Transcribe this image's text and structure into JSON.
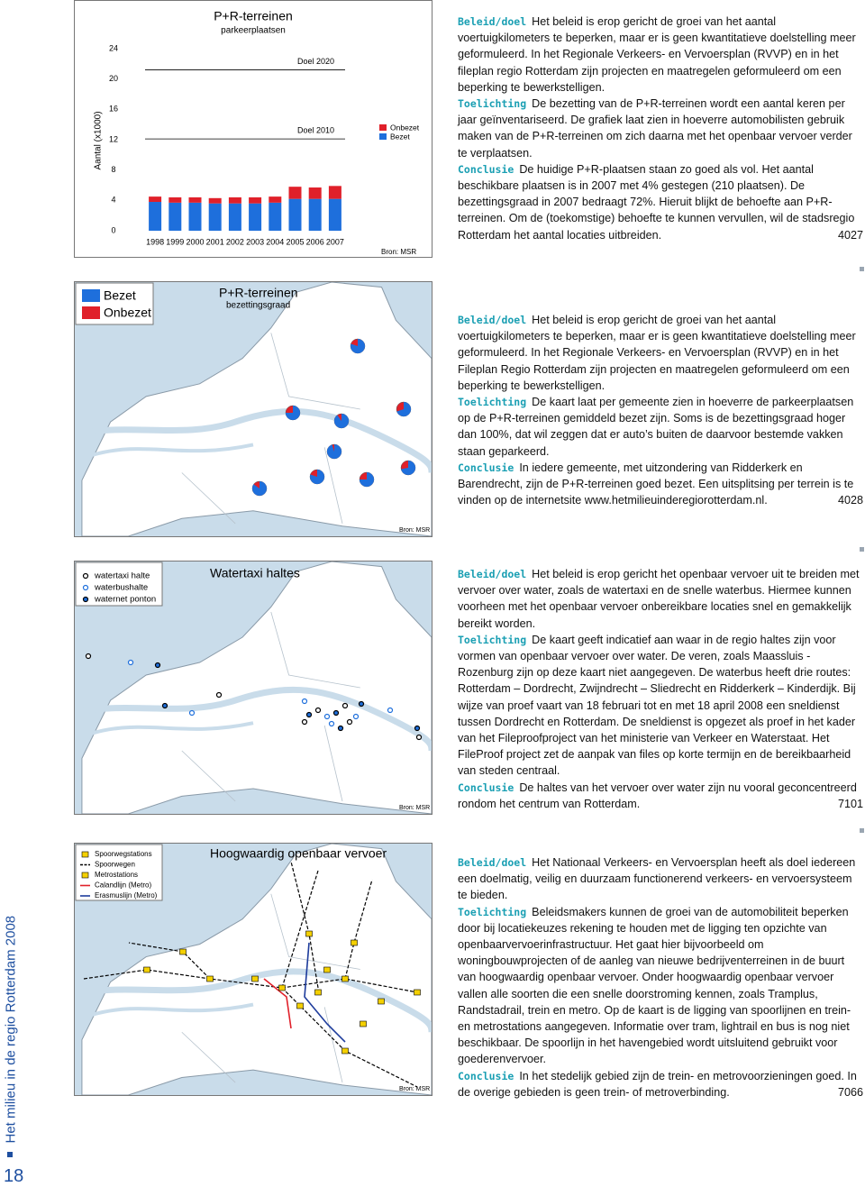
{
  "chart_data": {
    "type": "bar",
    "stacked": true,
    "title": "P+R-terreinen",
    "subtitle": "parkeerplaatsen",
    "ylabel": "Aantal (x1000)",
    "categories": [
      "1998",
      "1999",
      "2000",
      "2001",
      "2002",
      "2003",
      "2004",
      "2005",
      "2006",
      "2007"
    ],
    "series": [
      {
        "name": "Bezet",
        "color": "#1e6fdc",
        "values": [
          3.8,
          3.7,
          3.7,
          3.6,
          3.6,
          3.6,
          3.7,
          4.2,
          4.2,
          4.2
        ]
      },
      {
        "name": "Onbezet",
        "color": "#e0202a",
        "values": [
          0.7,
          0.7,
          0.7,
          0.7,
          0.8,
          0.8,
          0.8,
          1.6,
          1.5,
          1.7
        ]
      }
    ],
    "ylim": [
      0,
      24
    ],
    "yticks": [
      0,
      4,
      8,
      12,
      16,
      20,
      24
    ],
    "annotations": [
      {
        "label": "Doel 2020",
        "value": 21.2
      },
      {
        "label": "Doel 2010",
        "value": 12.1
      }
    ],
    "source": "Bron: MSR"
  },
  "maps": [
    {
      "title": "P+R-terreinen",
      "subtitle": "bezettingsgraad",
      "legend": [
        {
          "name": "Bezet",
          "color": "#1e6fdc"
        },
        {
          "name": "Onbezet",
          "color": "#e0202a"
        }
      ],
      "pies": [
        80,
        75,
        90,
        70,
        95,
        85,
        80,
        75,
        72
      ],
      "source": "Bron: MSR"
    },
    {
      "title": "Watertaxi haltes",
      "legend": [
        {
          "name": "watertaxi halte",
          "color": "#ffffff"
        },
        {
          "name": "waterbushalte",
          "color": "#ffffff"
        },
        {
          "name": "waternet ponton",
          "color": "#1e6fdc"
        }
      ],
      "source": "Bron: MSR"
    },
    {
      "title": "Hoogwaardig openbaar vervoer",
      "legend": [
        {
          "name": "Spoorwegstations",
          "color": "#f4d000"
        },
        {
          "name": "Spoorwegen",
          "color": "#000000"
        },
        {
          "name": "Metrostations",
          "color": "#f4d000"
        },
        {
          "name": "Calandlijn (Metro)",
          "color": "#e0202a"
        },
        {
          "name": "Erasmuslijn (Metro)",
          "color": "#1e3c9c"
        }
      ],
      "source": "Bron: MSR"
    }
  ],
  "sections": [
    {
      "paragraphs": [
        {
          "label": "Beleid/doel",
          "text": "Het beleid is erop gericht de groei van het aantal voertuigkilometers te beperken, maar er is geen kwantitatieve doelstelling meer geformuleerd. In het Regionale Verkeers- en Vervoersplan (RVVP) en in het fileplan regio Rotterdam zijn projecten en maatregelen geformuleerd om een beperking te bewerkstelligen."
        },
        {
          "label": "Toelichting",
          "text": "De bezetting van de P+R-terreinen wordt een aantal keren per jaar geïnventariseerd. De grafiek laat zien in hoeverre automobilisten gebruik maken van de P+R-terreinen om zich daarna met het openbaar vervoer verder te verplaatsen."
        },
        {
          "label": "Conclusie",
          "text": "De huidige P+R-plaatsen staan zo goed als vol. Het aantal beschikbare plaatsen is in 2007 met 4% gestegen (210 plaatsen). De bezettingsgraad in 2007 bedraagt 72%. Hieruit blijkt de behoefte aan P+R-terreinen. Om de (toekomstige) behoefte te kunnen vervullen, wil de stadsregio Rotterdam het aantal locaties uitbreiden."
        }
      ],
      "code": "4027"
    },
    {
      "paragraphs": [
        {
          "label": "Beleid/doel",
          "text": "Het beleid is erop gericht de groei van het aantal voertuigkilometers te beperken, maar er is geen kwantitatieve doelstelling meer geformuleerd. In het Regionale Verkeers- en Vervoersplan (RVVP) en in het Fileplan Regio Rotterdam zijn projecten en maatregelen geformuleerd om een beperking te bewerkstelligen."
        },
        {
          "label": "Toelichting",
          "text": "De kaart laat per gemeente zien in hoeverre de parkeerplaatsen op de P+R-terreinen gemiddeld bezet zijn. Soms is de bezettingsgraad hoger dan 100%, dat wil zeggen dat er auto’s buiten de daarvoor bestemde vakken staan geparkeerd."
        },
        {
          "label": "Conclusie",
          "text": "In iedere gemeente, met uitzondering van Ridderkerk en Barendrecht, zijn de P+R-terreinen goed bezet. Een uitsplitsing per terrein is te vinden op de internetsite www.hetmilieuinderegiorotterdam.nl."
        }
      ],
      "code": "4028"
    },
    {
      "paragraphs": [
        {
          "label": "Beleid/doel",
          "text": "Het beleid is erop gericht het openbaar vervoer uit te breiden met vervoer over water, zoals de watertaxi en de snelle waterbus. Hiermee kunnen voorheen met het openbaar vervoer onbereikbare locaties snel en gemakkelijk bereikt worden."
        },
        {
          "label": "Toelichting",
          "text": "De kaart geeft indicatief aan waar in de regio haltes zijn voor vormen van openbaar vervoer over water. De veren, zoals Maassluis - Rozenburg zijn op deze kaart niet aangegeven. De waterbus heeft drie routes: Rotterdam – Dordrecht, Zwijndrecht – Sliedrecht en Ridderkerk – Kinderdijk. Bij wijze van proef vaart van 18 februari tot en met 18 april 2008 een sneldienst tussen Dordrecht en Rotterdam. De sneldienst is opgezet als proef in het kader van het Fileproofproject van het ministerie van Verkeer en Waterstaat. Het FileProof project zet de aanpak van files op korte termijn en de bereikbaarheid van steden centraal."
        },
        {
          "label": "Conclusie",
          "text": "De haltes van het vervoer over water zijn nu vooral geconcentreerd rondom het centrum van Rotterdam."
        }
      ],
      "code": "7101"
    },
    {
      "paragraphs": [
        {
          "label": "Beleid/doel",
          "text": "Het Nationaal Verkeers- en Vervoersplan heeft als doel iedereen een doelmatig, veilig en duurzaam functionerend verkeers- en vervoersysteem te bieden."
        },
        {
          "label": "Toelichting",
          "text": "Beleidsmakers kunnen de groei van de automobiliteit beperken door bij locatiekeuzes rekening te houden met de ligging ten opzichte van openbaarvervoerinfrastructuur. Het gaat hier bijvoorbeeld om woningbouwprojecten of de aanleg van nieuwe bedrijventerreinen in de buurt van hoogwaardig openbaar vervoer. Onder hoogwaardig openbaar vervoer vallen alle soorten die een snelle doorstroming kennen, zoals Tramplus, Randstadrail, trein en metro. Op de kaart is de ligging van spoorlijnen en trein- en metrostations aangegeven. Informatie over tram, lightrail en bus is nog niet beschikbaar. De spoorlijn in het havengebied wordt uitsluitend gebruikt voor goederenvervoer."
        },
        {
          "label": "Conclusie",
          "text": "In het stedelijk gebied zijn de trein- en metrovoorzieningen goed. In de overige gebieden is geen trein- of metroverbinding."
        }
      ],
      "code": "7066"
    }
  ],
  "sidebar": {
    "title": "Het milieu in de regio Rotterdam 2008",
    "page": "18"
  }
}
